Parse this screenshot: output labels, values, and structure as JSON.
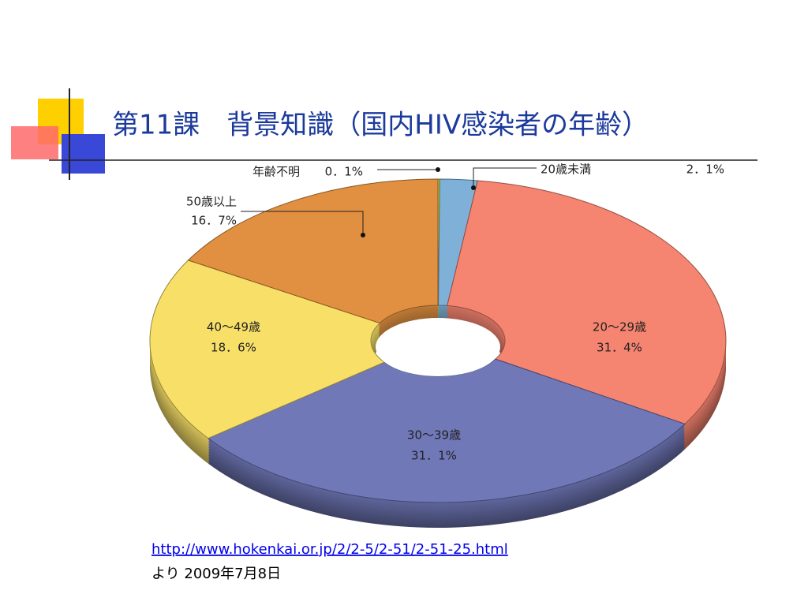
{
  "chart_data": {
    "type": "donut",
    "title": "第11課　背景知識（国内HIV感染者の年齢）",
    "categories": [
      "年齢不明",
      "20歳未満",
      "20～29歳",
      "30～39歳",
      "40～49歳",
      "50歳以上"
    ],
    "values": [
      0.1,
      2.1,
      31.4,
      31.1,
      18.6,
      16.7
    ],
    "value_labels": [
      "0．1%",
      "2．1%",
      "31．4%",
      "31．1%",
      "18．6%",
      "16．7%"
    ],
    "colors": [
      "#c8d400",
      "#7fb0d8",
      "#f58470",
      "#7078b8",
      "#f8e068",
      "#e09040"
    ],
    "source_url": "http://www.hokenkai.or.jp/2/2-5/2-51/2-51-25.html",
    "source_note": "より  2009年7月8日"
  }
}
